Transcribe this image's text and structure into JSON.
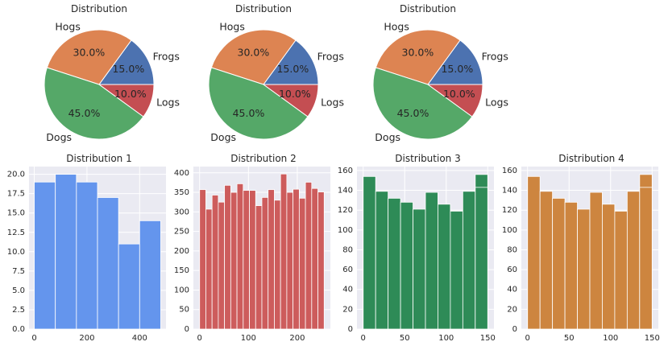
{
  "colors": {
    "bg": "#ffffff",
    "axes_bg": "#eaeaf2",
    "grid": "#ffffff",
    "pie": [
      "#4c72b0",
      "#dd8452",
      "#55a868",
      "#c44e52"
    ]
  },
  "chart_data": [
    {
      "type": "pie",
      "title": "Distribution",
      "labels": [
        "Frogs",
        "Hogs",
        "Dogs",
        "Logs"
      ],
      "values": [
        15,
        30,
        45,
        10
      ],
      "percent_labels": [
        "15.0%",
        "30.0%",
        "45.0%",
        "10.0%"
      ],
      "start_angle": 0,
      "direction": "counterclockwise"
    },
    {
      "type": "pie",
      "title": "Distribution",
      "labels": [
        "Frogs",
        "Hogs",
        "Dogs",
        "Logs"
      ],
      "values": [
        15,
        30,
        45,
        10
      ],
      "percent_labels": [
        "15.0%",
        "30.0%",
        "45.0%",
        "10.0%"
      ],
      "start_angle": 0,
      "direction": "counterclockwise"
    },
    {
      "type": "pie",
      "title": "Distribution",
      "labels": [
        "Frogs",
        "Hogs",
        "Dogs",
        "Logs"
      ],
      "values": [
        15,
        30,
        45,
        10
      ],
      "percent_labels": [
        "15.0%",
        "30.0%",
        "45.0%",
        "10.0%"
      ],
      "start_angle": 0,
      "direction": "counterclockwise"
    },
    {
      "type": "bar",
      "title": "Distribution 1",
      "bar_color": "#6495ed",
      "bin_edges": [
        0,
        80,
        160,
        240,
        320,
        400,
        480
      ],
      "values": [
        19,
        20,
        19,
        17,
        11,
        14
      ],
      "xlim": [
        -20,
        500
      ],
      "ylim": [
        0,
        21
      ],
      "xticks": [
        0,
        200,
        400
      ],
      "xtick_labels": [
        "0",
        "200",
        "400"
      ],
      "yticks": [
        0,
        2.5,
        5,
        7.5,
        10,
        12.5,
        15,
        17.5,
        20
      ],
      "ytick_labels": [
        "0.0",
        "2.5",
        "5.0",
        "7.5",
        "10.0",
        "12.5",
        "15.0",
        "17.5",
        "20.0"
      ]
    },
    {
      "type": "bar",
      "title": "Distribution 2",
      "bar_color": "#cd5c5c",
      "bin_edges": [
        0,
        12.75,
        25.5,
        38.25,
        51,
        63.75,
        76.5,
        89.25,
        102,
        114.75,
        127.5,
        140.25,
        153,
        165.75,
        178.5,
        191.25,
        204,
        216.75,
        229.5,
        242.25,
        255
      ],
      "values": [
        357,
        307,
        343,
        325,
        368,
        350,
        372,
        355,
        355,
        316,
        337,
        357,
        330,
        397,
        350,
        358,
        335,
        376,
        360,
        351
      ],
      "xlim": [
        -12.75,
        267.75
      ],
      "ylim": [
        0,
        416
      ],
      "xticks": [
        0,
        100,
        200
      ],
      "xtick_labels": [
        "0",
        "100",
        "200"
      ],
      "yticks": [
        0,
        50,
        100,
        150,
        200,
        250,
        300,
        350,
        400
      ],
      "ytick_labels": [
        "0",
        "50",
        "100",
        "150",
        "200",
        "250",
        "300",
        "350",
        "400"
      ]
    },
    {
      "type": "bar",
      "title": "Distribution 3",
      "bar_color": "#2e8b57",
      "bin_edges": [
        0,
        15,
        30,
        45,
        60,
        75,
        90,
        105,
        120,
        135,
        150
      ],
      "values": [
        154,
        139,
        132,
        128,
        121,
        138,
        126,
        119,
        139,
        156
      ],
      "extra_bar": {
        "from": 135,
        "to": 150,
        "value": 143
      },
      "xlim": [
        -7.5,
        157.5
      ],
      "ylim": [
        0,
        164
      ],
      "xticks": [
        0,
        50,
        100,
        150
      ],
      "xtick_labels": [
        "0",
        "50",
        "100",
        "150"
      ],
      "yticks": [
        0,
        20,
        40,
        60,
        80,
        100,
        120,
        140,
        160
      ],
      "ytick_labels": [
        "0",
        "20",
        "40",
        "60",
        "80",
        "100",
        "120",
        "140",
        "160"
      ]
    },
    {
      "type": "bar",
      "title": "Distribution 4",
      "bar_color": "#cd853f",
      "bin_edges": [
        0,
        15,
        30,
        45,
        60,
        75,
        90,
        105,
        120,
        135,
        150
      ],
      "values": [
        154,
        139,
        132,
        128,
        121,
        138,
        126,
        119,
        139,
        156
      ],
      "extra_bar": {
        "from": 135,
        "to": 150,
        "value": 143
      },
      "xlim": [
        -7.5,
        157.5
      ],
      "ylim": [
        0,
        164
      ],
      "xticks": [
        0,
        50,
        100,
        150
      ],
      "xtick_labels": [
        "0",
        "50",
        "100",
        "150"
      ],
      "yticks": [
        0,
        20,
        40,
        60,
        80,
        100,
        120,
        140,
        160
      ],
      "ytick_labels": [
        "0",
        "20",
        "40",
        "60",
        "80",
        "100",
        "120",
        "140",
        "160"
      ]
    }
  ]
}
